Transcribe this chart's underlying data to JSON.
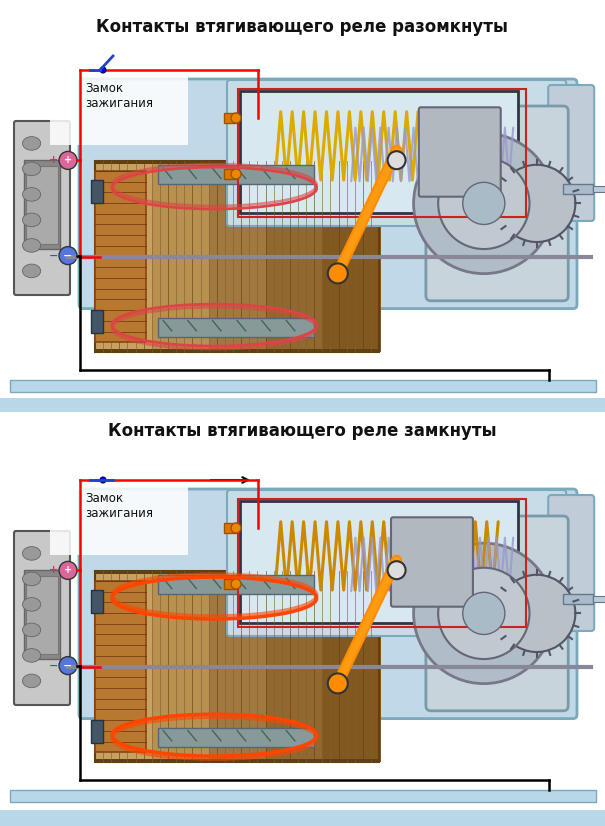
{
  "title1": "Контакты втягивающего реле разомкнуты",
  "title2": "Контакты втягивающего реле замкнуты",
  "label_zamok": "Замок\nзажигания",
  "background_color": "#ffffff",
  "title_fontsize": 12,
  "label_fontsize": 8.5,
  "fig_width": 6.05,
  "fig_height": 8.26,
  "dpi": 100,
  "divider_color": "#b8d8e8",
  "bottom_bar_color": "#b8d8e8"
}
